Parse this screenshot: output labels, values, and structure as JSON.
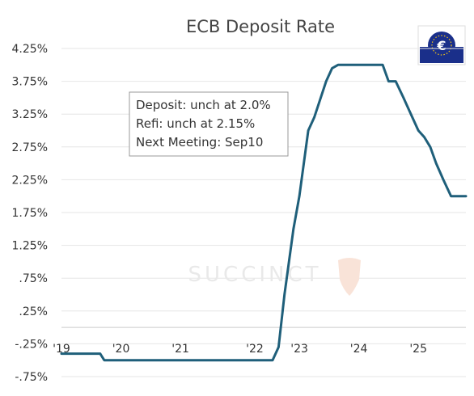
{
  "colors": {
    "series": "#1f5f7a",
    "logo_bg": "#1a2f8a",
    "logo_stars": "#f5c518",
    "watermark": "#e9e9e9"
  },
  "chart_data": {
    "type": "line",
    "title": "ECB Deposit Rate",
    "xlabel": "",
    "ylabel": "",
    "x_tick_labels": [
      "'19",
      "'20",
      "'21",
      "'22",
      "'23",
      "'24",
      "'25"
    ],
    "x_tick_values": [
      2019.0,
      2020.0,
      2021.0,
      2022.25,
      2023.0,
      2024.0,
      2025.0
    ],
    "xlim": [
      2019.0,
      2025.8
    ],
    "y_tick_labels": [
      "4.25%",
      "3.75%",
      "3.25%",
      "2.75%",
      "2.25%",
      "1.75%",
      "1.25%",
      ".75%",
      ".25%",
      "-.25%",
      "-.75%"
    ],
    "y_tick_values": [
      4.25,
      3.75,
      3.25,
      2.75,
      2.25,
      1.75,
      1.25,
      0.75,
      0.25,
      -0.25,
      -0.75
    ],
    "ylim": [
      -0.75,
      4.25
    ],
    "grid": true,
    "series": [
      {
        "x": [
          2019.0,
          2019.45,
          2019.65,
          2019.72,
          2022.0,
          2022.5,
          2022.55,
          2022.65,
          2022.75,
          2022.9,
          2023.0,
          2023.15,
          2023.25,
          2023.45,
          2023.55,
          2023.65,
          2024.0,
          2024.3,
          2024.4,
          2024.5,
          2024.62,
          2024.75,
          2024.9,
          2025.0,
          2025.1,
          2025.2,
          2025.3,
          2025.42,
          2025.55,
          2025.7,
          2025.8
        ],
        "y": [
          -0.4,
          -0.4,
          -0.4,
          -0.5,
          -0.5,
          -0.5,
          -0.5,
          -0.3,
          0.5,
          1.5,
          2.0,
          3.0,
          3.2,
          3.75,
          3.95,
          4.0,
          4.0,
          4.0,
          4.0,
          3.75,
          3.75,
          3.5,
          3.2,
          3.0,
          2.9,
          2.75,
          2.5,
          2.25,
          2.0,
          2.0,
          2.0
        ]
      }
    ],
    "annotation": {
      "lines": [
        "Deposit: unch at 2.0%",
        "Refi: unch at 2.15%",
        "Next Meeting:  Sep10"
      ]
    },
    "watermark_text": "SUCCINCT"
  }
}
